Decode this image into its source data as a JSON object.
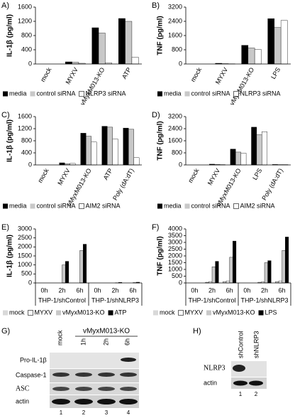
{
  "chart_data": [
    {
      "type": "bar",
      "panel": "A)",
      "ylabel": "IL-1β (pg/ml)",
      "categories": [
        "mock",
        "MYXV",
        "vMyxM013-KO",
        "ATP"
      ],
      "series": [
        {
          "name": "media",
          "color": "#000000",
          "values": [
            0,
            60,
            1020,
            1280
          ]
        },
        {
          "name": "control siRNA",
          "color": "#c8c8c8",
          "values": [
            0,
            50,
            870,
            1200
          ]
        },
        {
          "name": "NLRP3 siRNA",
          "color": "#ffffff",
          "values": [
            0,
            20,
            30,
            190
          ]
        }
      ],
      "ylim": [
        0,
        1600
      ],
      "yticks": [
        0,
        400,
        800,
        1200,
        1600
      ],
      "legend": "bottom"
    },
    {
      "type": "bar",
      "panel": "B)",
      "ylabel": "TNF (pg/ml)",
      "categories": [
        "mock",
        "MYXV",
        "vMyxM013-KO",
        "LPS"
      ],
      "series": [
        {
          "name": "media",
          "color": "#000000",
          "values": [
            0,
            40,
            1050,
            2550
          ]
        },
        {
          "name": "control siRNA",
          "color": "#c8c8c8",
          "values": [
            0,
            20,
            900,
            2050
          ]
        },
        {
          "name": "NLRP3 siRNA",
          "color": "#ffffff",
          "values": [
            0,
            10,
            820,
            2450
          ]
        }
      ],
      "ylim": [
        0,
        3200
      ],
      "yticks": [
        0,
        800,
        1600,
        2400,
        3200
      ],
      "legend": "bottom"
    },
    {
      "type": "bar",
      "panel": "C)",
      "ylabel": "IL-1β (pg/ml)",
      "categories": [
        "mock",
        "MYXV",
        "vMyxM013-KO",
        "ATP",
        "Poly (dA:dT)"
      ],
      "series": [
        {
          "name": "media",
          "color": "#000000",
          "values": [
            0,
            70,
            1050,
            1280,
            1220
          ]
        },
        {
          "name": "control siRNA",
          "color": "#c8c8c8",
          "values": [
            0,
            40,
            950,
            1250,
            1180
          ]
        },
        {
          "name": "AIM2 siRNA",
          "color": "#ffffff",
          "values": [
            0,
            50,
            760,
            860,
            240
          ]
        }
      ],
      "ylim": [
        0,
        1600
      ],
      "yticks": [
        0,
        400,
        800,
        1200,
        1600
      ],
      "legend": "bottom"
    },
    {
      "type": "bar",
      "panel": "D)",
      "ylabel": "TNF (pg/ml)",
      "categories": [
        "mock",
        "MYXV",
        "vMyxM013-KO",
        "LPS",
        "Poly (dA:dT)"
      ],
      "series": [
        {
          "name": "media",
          "color": "#000000",
          "values": [
            0,
            50,
            1050,
            2500,
            30
          ]
        },
        {
          "name": "control siRNA",
          "color": "#c8c8c8",
          "values": [
            0,
            30,
            850,
            2000,
            20
          ]
        },
        {
          "name": "AIM2 siRNA",
          "color": "#ffffff",
          "values": [
            0,
            20,
            780,
            2200,
            20
          ]
        }
      ],
      "ylim": [
        0,
        3200
      ],
      "yticks": [
        0,
        800,
        1600,
        2400,
        3200
      ],
      "legend": "bottom"
    },
    {
      "type": "bar",
      "panel": "E)",
      "ylabel": "IL-1β (pg/ml)",
      "categories": [
        "0h",
        "2h",
        "6h",
        "0h",
        "2h",
        "6h"
      ],
      "groups": [
        "THP-1/shControl",
        "THP-1/shNLRP3"
      ],
      "series": [
        {
          "name": "mock",
          "color": "#d9d9d9",
          "values": [
            0,
            0,
            0,
            0,
            0,
            0
          ]
        },
        {
          "name": "MYXV",
          "color": "#ffffff",
          "values": [
            0,
            0,
            0,
            0,
            0,
            0
          ]
        },
        {
          "name": "vMyxM013-KO",
          "color": "#c8c8c8",
          "values": [
            0,
            1000,
            1800,
            0,
            10,
            20
          ]
        },
        {
          "name": "ATP",
          "color": "#000000",
          "values": [
            0,
            1200,
            2150,
            0,
            30,
            40
          ]
        }
      ],
      "ylim": [
        0,
        3000
      ],
      "yticks": [
        0,
        500,
        1000,
        1500,
        2000,
        2500,
        3000
      ],
      "legend": "bottom"
    },
    {
      "type": "bar",
      "panel": "F)",
      "ylabel": "TNF (pg/ml)",
      "categories": [
        "0h",
        "2h",
        "6h",
        "0h",
        "2h",
        "6h"
      ],
      "groups": [
        "THP-1/shControl",
        "THP-1/shNLRP3"
      ],
      "series": [
        {
          "name": "mock",
          "color": "#d9d9d9",
          "values": [
            0,
            50,
            100,
            0,
            50,
            100
          ]
        },
        {
          "name": "MYXV",
          "color": "#ffffff",
          "values": [
            0,
            100,
            150,
            0,
            80,
            150
          ]
        },
        {
          "name": "vMyxM013-KO",
          "color": "#c8c8c8",
          "values": [
            0,
            1200,
            1900,
            0,
            1500,
            2400
          ]
        },
        {
          "name": "LPS",
          "color": "#000000",
          "values": [
            0,
            1600,
            3100,
            0,
            1650,
            3400
          ]
        }
      ],
      "ylim": [
        0,
        4000
      ],
      "yticks": [
        0,
        500,
        1000,
        1500,
        2000,
        2500,
        3000,
        3500,
        4000
      ],
      "legend": "bottom"
    }
  ],
  "blots": {
    "G": {
      "label": "G)",
      "lanes": [
        "mock",
        "1h",
        "2h",
        "6h"
      ],
      "treatment": "vMyxM013-KO",
      "rows": [
        "Pro-IL-1β",
        "Caspase-1",
        "ASC",
        "actin"
      ],
      "lane_numbers": [
        "1",
        "2",
        "3",
        "4"
      ]
    },
    "H": {
      "label": "H)",
      "lanes": [
        "shControl",
        "shNLRP3"
      ],
      "rows": [
        "NLRP3",
        "actin"
      ],
      "lane_numbers": [
        "1",
        "2"
      ]
    }
  }
}
